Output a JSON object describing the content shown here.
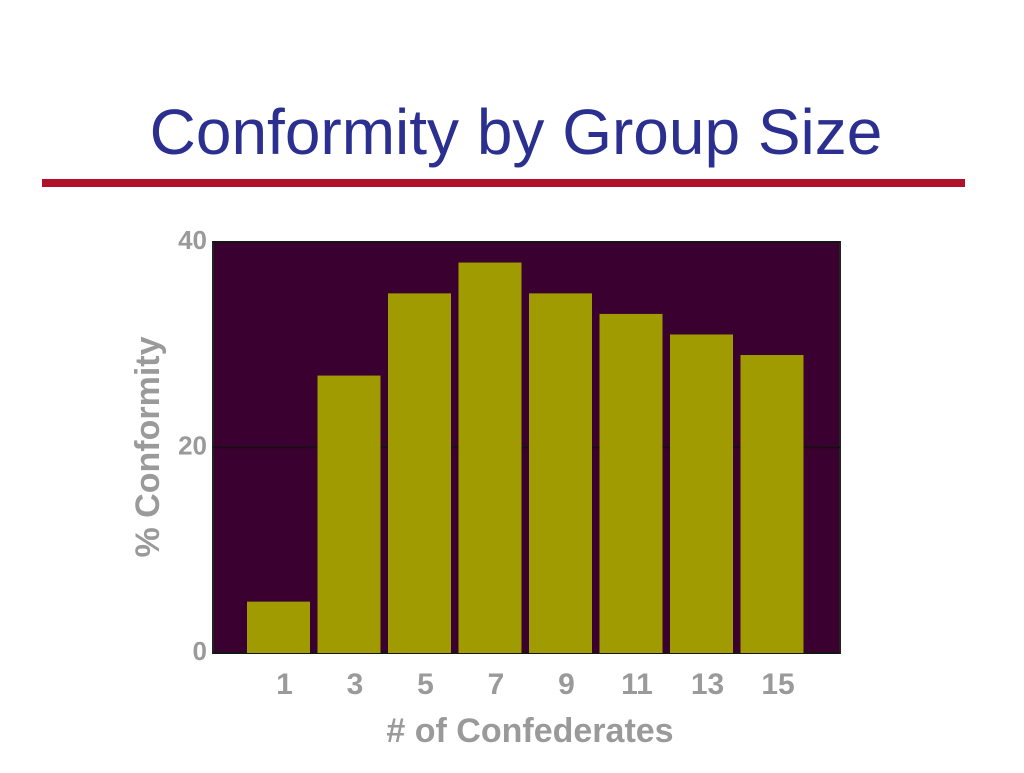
{
  "chart_data": {
    "type": "bar",
    "title": "Conformity by Group Size",
    "categories": [
      "1",
      "3",
      "5",
      "7",
      "9",
      "11",
      "13",
      "15"
    ],
    "values": [
      5,
      27,
      35,
      38,
      35,
      33,
      31,
      29
    ],
    "color": "#a09b00",
    "background": "#3a0030",
    "x_label": "# of Confederates",
    "y_label": "% Conformity",
    "ylim": [
      0,
      40
    ],
    "yticks": [
      0,
      20,
      40
    ],
    "grid": true
  }
}
